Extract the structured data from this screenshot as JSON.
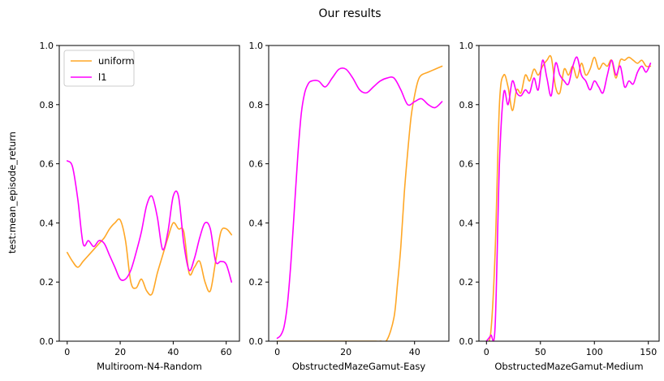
{
  "title": "Our results",
  "ylabel": "test:mean_episode_return",
  "legend": [
    {
      "label": "uniform",
      "color": "#ffa726"
    },
    {
      "label": "l1",
      "color": "#ff00ff"
    }
  ],
  "chart_data": [
    {
      "type": "line",
      "xlabel": "Multiroom-N4-Random",
      "xlim": [
        -3,
        65
      ],
      "ylim": [
        0,
        1
      ],
      "xticks": [
        0,
        20,
        40,
        60
      ],
      "yticks": [
        0.0,
        0.2,
        0.4,
        0.6,
        0.8,
        1.0
      ],
      "legend_position": "upper-left",
      "series": [
        {
          "name": "uniform",
          "color": "#ffa726",
          "x": [
            0,
            2,
            4,
            6,
            8,
            10,
            12,
            14,
            16,
            18,
            20,
            22,
            24,
            26,
            28,
            30,
            32,
            34,
            36,
            38,
            40,
            42,
            44,
            46,
            48,
            50,
            52,
            54,
            56,
            58,
            60,
            62
          ],
          "y": [
            0.3,
            0.27,
            0.25,
            0.27,
            0.29,
            0.31,
            0.33,
            0.35,
            0.38,
            0.4,
            0.41,
            0.34,
            0.2,
            0.18,
            0.21,
            0.17,
            0.16,
            0.23,
            0.29,
            0.35,
            0.4,
            0.38,
            0.37,
            0.23,
            0.25,
            0.27,
            0.2,
            0.17,
            0.27,
            0.37,
            0.38,
            0.36
          ]
        },
        {
          "name": "l1",
          "color": "#ff00ff",
          "x": [
            0,
            2,
            4,
            6,
            8,
            10,
            12,
            14,
            16,
            18,
            20,
            22,
            24,
            26,
            28,
            30,
            32,
            34,
            36,
            38,
            40,
            42,
            44,
            46,
            48,
            50,
            52,
            54,
            56,
            58,
            60,
            62
          ],
          "y": [
            0.61,
            0.59,
            0.48,
            0.33,
            0.34,
            0.32,
            0.34,
            0.33,
            0.29,
            0.25,
            0.21,
            0.21,
            0.24,
            0.3,
            0.37,
            0.46,
            0.49,
            0.42,
            0.31,
            0.37,
            0.49,
            0.49,
            0.33,
            0.24,
            0.28,
            0.35,
            0.4,
            0.38,
            0.27,
            0.27,
            0.26,
            0.2
          ]
        }
      ]
    },
    {
      "type": "line",
      "xlabel": "ObstructedMazeGamut-Easy",
      "xlim": [
        -2.5,
        50
      ],
      "ylim": [
        0,
        1
      ],
      "xticks": [
        0,
        20,
        40
      ],
      "yticks": [
        0.0,
        0.2,
        0.4,
        0.6,
        0.8,
        1.0
      ],
      "series": [
        {
          "name": "uniform",
          "color": "#ffa726",
          "x": [
            0,
            2,
            4,
            6,
            8,
            10,
            12,
            14,
            16,
            18,
            20,
            22,
            24,
            26,
            28,
            30,
            32,
            34,
            35,
            36,
            37,
            38,
            39,
            40,
            41,
            42,
            44,
            46,
            48
          ],
          "y": [
            0.0,
            0.0,
            0.0,
            0.0,
            0.0,
            0.0,
            0.0,
            0.0,
            0.0,
            0.0,
            0.0,
            0.0,
            0.0,
            0.0,
            0.0,
            0.0,
            0.005,
            0.08,
            0.19,
            0.32,
            0.5,
            0.64,
            0.76,
            0.83,
            0.88,
            0.9,
            0.91,
            0.92,
            0.93
          ]
        },
        {
          "name": "l1",
          "color": "#ff00ff",
          "x": [
            0,
            1,
            2,
            3,
            4,
            5,
            6,
            7,
            8,
            9,
            10,
            12,
            14,
            16,
            18,
            20,
            22,
            24,
            26,
            28,
            30,
            32,
            34,
            36,
            38,
            40,
            42,
            44,
            46,
            48
          ],
          "y": [
            0.01,
            0.02,
            0.05,
            0.13,
            0.27,
            0.45,
            0.63,
            0.77,
            0.84,
            0.87,
            0.88,
            0.88,
            0.86,
            0.89,
            0.92,
            0.92,
            0.89,
            0.85,
            0.84,
            0.86,
            0.88,
            0.89,
            0.89,
            0.85,
            0.8,
            0.81,
            0.82,
            0.8,
            0.79,
            0.81
          ]
        }
      ]
    },
    {
      "type": "line",
      "xlabel": "ObstructedMazeGamut-Medium",
      "xlim": [
        -7,
        160
      ],
      "ylim": [
        0,
        1
      ],
      "xticks": [
        0,
        50,
        100,
        150
      ],
      "yticks": [
        0.0,
        0.2,
        0.4,
        0.6,
        0.8,
        1.0
      ],
      "series": [
        {
          "name": "uniform",
          "color": "#ffa726",
          "x": [
            0,
            4,
            8,
            12,
            16,
            20,
            24,
            28,
            32,
            36,
            40,
            44,
            48,
            52,
            56,
            60,
            64,
            68,
            72,
            76,
            80,
            84,
            88,
            92,
            96,
            100,
            104,
            108,
            112,
            116,
            120,
            124,
            128,
            132,
            136,
            140,
            144,
            148,
            152
          ],
          "y": [
            0.0,
            0.03,
            0.3,
            0.8,
            0.9,
            0.86,
            0.78,
            0.85,
            0.84,
            0.9,
            0.88,
            0.92,
            0.9,
            0.93,
            0.95,
            0.96,
            0.86,
            0.84,
            0.92,
            0.9,
            0.93,
            0.89,
            0.94,
            0.9,
            0.92,
            0.96,
            0.92,
            0.94,
            0.93,
            0.95,
            0.89,
            0.95,
            0.95,
            0.96,
            0.95,
            0.94,
            0.95,
            0.93,
            0.93
          ]
        },
        {
          "name": "l1",
          "color": "#ff00ff",
          "x": [
            0,
            4,
            8,
            12,
            16,
            20,
            24,
            28,
            32,
            36,
            40,
            44,
            48,
            52,
            56,
            60,
            64,
            68,
            72,
            76,
            80,
            84,
            88,
            92,
            96,
            100,
            104,
            108,
            112,
            116,
            120,
            124,
            128,
            132,
            136,
            140,
            144,
            148,
            152
          ],
          "y": [
            0.0,
            0.02,
            0.05,
            0.6,
            0.84,
            0.8,
            0.88,
            0.84,
            0.83,
            0.85,
            0.84,
            0.89,
            0.85,
            0.95,
            0.89,
            0.83,
            0.94,
            0.9,
            0.88,
            0.87,
            0.93,
            0.96,
            0.9,
            0.88,
            0.85,
            0.88,
            0.86,
            0.84,
            0.9,
            0.95,
            0.9,
            0.93,
            0.86,
            0.88,
            0.87,
            0.91,
            0.93,
            0.91,
            0.94
          ]
        }
      ]
    }
  ]
}
